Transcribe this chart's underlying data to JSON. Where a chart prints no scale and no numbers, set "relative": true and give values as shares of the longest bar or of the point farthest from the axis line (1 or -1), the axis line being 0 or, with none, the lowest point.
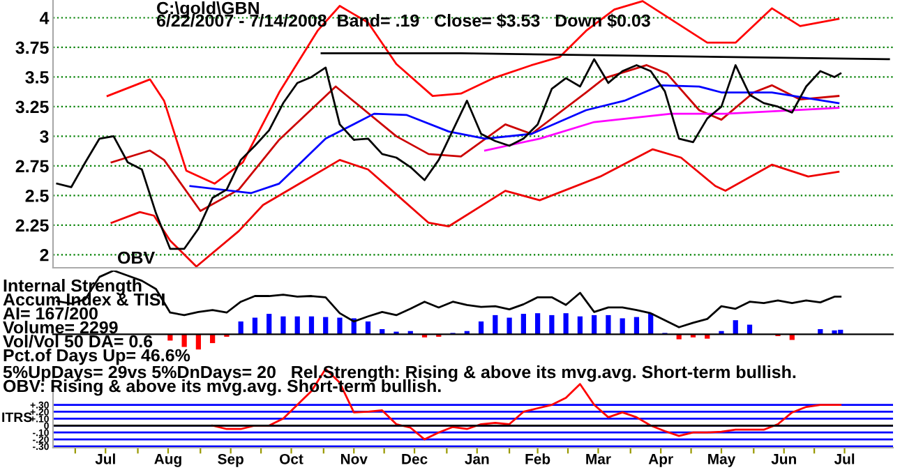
{
  "chart_data": [
    {
      "type": "line",
      "title": "C:\\gold\\GBN",
      "subtitle": "6/22/2007 - 7/14/2008  Band= .19   Close= $3.53   Down $0.03",
      "x": [
        "2007-06-22",
        "2007-06-29",
        "2007-07-06",
        "2007-07-13",
        "2007-07-20",
        "2007-07-27",
        "2007-08-03",
        "2007-08-10",
        "2007-08-17",
        "2007-08-24",
        "2007-08-31",
        "2007-09-07",
        "2007-09-14",
        "2007-09-21",
        "2007-09-28",
        "2007-10-05",
        "2007-10-12",
        "2007-10-19",
        "2007-10-26",
        "2007-11-02",
        "2007-11-09",
        "2007-11-16",
        "2007-11-23",
        "2007-11-30",
        "2007-12-07",
        "2007-12-14",
        "2007-12-21",
        "2007-12-28",
        "2008-01-04",
        "2008-01-11",
        "2008-01-18",
        "2008-01-25",
        "2008-02-01",
        "2008-02-08",
        "2008-02-15",
        "2008-02-22",
        "2008-02-29",
        "2008-03-07",
        "2008-03-14",
        "2008-03-21",
        "2008-03-28",
        "2008-04-04",
        "2008-04-11",
        "2008-04-18",
        "2008-04-25",
        "2008-05-02",
        "2008-05-09",
        "2008-05-16",
        "2008-05-23",
        "2008-05-30",
        "2008-06-06",
        "2008-06-13",
        "2008-06-20",
        "2008-06-27",
        "2008-07-04",
        "2008-07-11",
        "2008-07-14"
      ],
      "series": [
        {
          "color": "#ff0000",
          "x": [
            "2007-07-17",
            "2007-08-07",
            "2007-08-14",
            "2007-08-25",
            "2007-09-08",
            "2007-09-22",
            "2007-10-10",
            "2007-10-29",
            "2007-11-09",
            "2007-11-23",
            "2007-12-07",
            "2007-12-25",
            "2008-01-08",
            "2008-01-24",
            "2008-02-12",
            "2008-02-26",
            "2008-03-10",
            "2008-03-24",
            "2008-04-07",
            "2008-05-09",
            "2008-05-23",
            "2008-06-10",
            "2008-06-24",
            "2008-07-13"
          ],
          "values": [
            3.34,
            3.48,
            3.3,
            2.71,
            2.6,
            2.78,
            3.37,
            3.89,
            4.1,
            3.96,
            3.61,
            3.34,
            3.36,
            3.49,
            3.6,
            3.67,
            3.89,
            4.07,
            4.14,
            3.79,
            3.79,
            4.08,
            3.93,
            3.99
          ]
        },
        {
          "color": "#ee0000",
          "x": [
            "2007-07-19",
            "2007-08-02",
            "2007-08-09",
            "2007-08-17",
            "2007-08-30",
            "2007-09-20",
            "2007-10-02",
            "2007-10-22",
            "2007-11-09",
            "2007-11-23",
            "2007-12-07",
            "2007-12-23",
            "2008-01-02",
            "2008-01-30",
            "2008-02-16",
            "2008-03-17",
            "2008-04-12",
            "2008-04-26",
            "2008-05-13",
            "2008-05-18",
            "2008-06-10",
            "2008-06-28",
            "2008-07-13"
          ],
          "values": [
            2.27,
            2.36,
            2.33,
            2.12,
            1.9,
            2.2,
            2.42,
            2.62,
            2.8,
            2.72,
            2.51,
            2.27,
            2.24,
            2.54,
            2.46,
            2.66,
            2.89,
            2.82,
            2.58,
            2.54,
            2.76,
            2.66,
            2.7
          ]
        },
        {
          "color": "#cc0000",
          "x": [
            "2007-07-19",
            "2007-08-07",
            "2007-08-14",
            "2007-09-01",
            "2007-09-20",
            "2007-10-10",
            "2007-11-07",
            "2007-12-07",
            "2007-12-23",
            "2008-01-08",
            "2008-01-30",
            "2008-02-12",
            "2008-03-10",
            "2008-03-19",
            "2008-04-09",
            "2008-04-19",
            "2008-05-05",
            "2008-05-16",
            "2008-06-01",
            "2008-06-10",
            "2008-06-24",
            "2008-07-13"
          ],
          "values": [
            2.78,
            2.88,
            2.8,
            2.37,
            2.55,
            2.97,
            3.42,
            3.0,
            2.85,
            2.83,
            3.1,
            3.02,
            3.37,
            3.49,
            3.6,
            3.53,
            3.22,
            3.14,
            3.37,
            3.43,
            3.31,
            3.34
          ]
        },
        {
          "color": "#0000ff",
          "x": [
            "2007-08-27",
            "2007-09-26",
            "2007-10-10",
            "2007-11-02",
            "2007-11-26",
            "2007-12-12",
            "2008-01-02",
            "2008-01-20",
            "2008-02-12",
            "2008-03-10",
            "2008-03-29",
            "2008-04-16",
            "2008-05-05",
            "2008-05-16",
            "2008-06-10",
            "2008-07-13"
          ],
          "values": [
            2.58,
            2.52,
            2.6,
            2.98,
            3.19,
            3.18,
            3.04,
            2.98,
            3.02,
            3.22,
            3.3,
            3.43,
            3.42,
            3.37,
            3.37,
            3.28
          ]
        },
        {
          "color": "#ff00ff",
          "x": [
            "2008-01-20",
            "2008-02-16",
            "2008-03-14",
            "2008-04-21",
            "2008-05-18",
            "2008-07-13"
          ],
          "values": [
            2.88,
            2.98,
            3.12,
            3.19,
            3.19,
            3.24
          ]
        },
        {
          "color": "#000000",
          "x": [
            "2007-10-31",
            "2008-01-08",
            "2008-08-07"
          ],
          "values": [
            3.7,
            3.7,
            3.65
          ]
        },
        {
          "color": "#000000",
          "values": [
            2.6,
            2.57,
            2.78,
            2.98,
            3.0,
            2.78,
            2.72,
            2.35,
            2.05,
            2.05,
            2.22,
            2.48,
            2.55,
            2.8,
            2.92,
            3.05,
            3.28,
            3.45,
            3.5,
            3.58,
            3.1,
            2.97,
            2.98,
            2.85,
            2.82,
            2.74,
            2.63,
            2.8,
            3.05,
            3.3,
            3.02,
            2.96,
            2.92,
            2.98,
            3.1,
            3.4,
            3.49,
            3.42,
            3.65,
            3.45,
            3.55,
            3.6,
            3.55,
            3.38,
            2.98,
            2.95,
            3.15,
            3.25,
            3.6,
            3.35,
            3.28,
            3.25,
            3.2,
            3.42,
            3.55,
            3.5,
            3.53
          ]
        }
      ],
      "xlim": [
        "2007-06-20",
        "2008-08-09"
      ],
      "ylim": [
        1.89,
        4.15
      ],
      "yticks": [
        2,
        2.25,
        2.5,
        2.75,
        3,
        3.25,
        3.5,
        3.75,
        4
      ],
      "grid": "y",
      "tick_labels": "y",
      "line_style": "solid"
    },
    {
      "type": "bar",
      "relative": true,
      "tick_labels": false,
      "annotations": [
        "Internal Strength",
        "Accum Index & TISI",
        "AI= 167/200",
        "Volume= 2299",
        "Vol/Vol 50 DA= 0.6",
        "Pct.of Days Up= 46.6%",
        "5%UpDays= 29vs 5%DnDays= 20   Rel.Strength: Rising & above its mvg.avg. Short-term bullish.",
        "OBV: Rising & above its mvg.avg. Short-term bullish."
      ],
      "x": [
        "2007-06-22",
        "2007-06-29",
        "2007-07-06",
        "2007-07-13",
        "2007-07-20",
        "2007-07-27",
        "2007-08-03",
        "2007-08-10",
        "2007-08-17",
        "2007-08-24",
        "2007-08-31",
        "2007-09-07",
        "2007-09-14",
        "2007-09-21",
        "2007-09-28",
        "2007-10-05",
        "2007-10-12",
        "2007-10-19",
        "2007-10-26",
        "2007-11-02",
        "2007-11-09",
        "2007-11-16",
        "2007-11-23",
        "2007-11-30",
        "2007-12-07",
        "2007-12-14",
        "2007-12-21",
        "2007-12-28",
        "2008-01-04",
        "2008-01-11",
        "2008-01-18",
        "2008-01-25",
        "2008-02-01",
        "2008-02-08",
        "2008-02-15",
        "2008-02-22",
        "2008-02-29",
        "2008-03-07",
        "2008-03-14",
        "2008-03-21",
        "2008-03-28",
        "2008-04-04",
        "2008-04-11",
        "2008-04-18",
        "2008-04-25",
        "2008-05-02",
        "2008-05-09",
        "2008-05-16",
        "2008-05-23",
        "2008-05-30",
        "2008-06-06",
        "2008-06-13",
        "2008-06-20",
        "2008-06-27",
        "2008-07-04",
        "2008-07-11",
        "2008-07-14"
      ],
      "series": [
        {
          "color": "#0000ff",
          "values": [
            null,
            null,
            null,
            null,
            null,
            null,
            null,
            null,
            null,
            null,
            null,
            null,
            null,
            0.2,
            0.26,
            0.32,
            0.28,
            0.28,
            0.28,
            0.27,
            0.26,
            0.25,
            0.2,
            0.08,
            0.04,
            0.05,
            null,
            null,
            0.02,
            0.05,
            0.2,
            0.3,
            0.26,
            0.32,
            0.33,
            0.3,
            0.33,
            0.28,
            0.3,
            0.3,
            0.25,
            0.27,
            0.33,
            0.02,
            null,
            null,
            null,
            0.05,
            0.22,
            0.15,
            null,
            null,
            null,
            null,
            0.08,
            0.06,
            0.07
          ]
        },
        {
          "color": "#ff0000",
          "values": [
            null,
            null,
            null,
            null,
            null,
            null,
            null,
            null,
            -0.1,
            -0.2,
            -0.24,
            -0.14,
            -0.04,
            null,
            null,
            null,
            null,
            null,
            null,
            null,
            null,
            null,
            null,
            null,
            null,
            null,
            -0.05,
            -0.04,
            null,
            null,
            null,
            null,
            null,
            null,
            null,
            null,
            null,
            null,
            null,
            null,
            null,
            null,
            null,
            null,
            -0.08,
            -0.05,
            -0.07,
            null,
            null,
            null,
            null,
            -0.03,
            -0.09,
            null,
            null,
            null,
            null
          ]
        },
        {
          "type": "line",
          "name": "OBV",
          "color": "#000000",
          "values": [
            0.52,
            0.48,
            0.55,
            0.9,
            1.0,
            0.92,
            0.84,
            0.71,
            0.34,
            0.3,
            0.35,
            0.38,
            0.34,
            0.51,
            0.6,
            0.6,
            0.62,
            0.59,
            0.6,
            0.58,
            0.33,
            0.2,
            0.28,
            0.35,
            0.3,
            0.4,
            0.51,
            0.42,
            0.51,
            0.46,
            0.43,
            0.44,
            0.39,
            0.47,
            0.58,
            0.58,
            0.46,
            0.65,
            0.35,
            0.42,
            0.42,
            0.38,
            0.33,
            0.22,
            0.11,
            0.18,
            0.24,
            0.44,
            0.4,
            0.51,
            0.49,
            0.53,
            0.49,
            0.53,
            0.5,
            0.59,
            0.59
          ]
        }
      ],
      "xlim": [
        "2007-06-20",
        "2008-08-09"
      ]
    },
    {
      "type": "line",
      "ylabel": "ITRS",
      "x": [
        "2007-09-07",
        "2007-09-14",
        "2007-09-21",
        "2007-09-28",
        "2007-10-05",
        "2007-10-12",
        "2007-10-19",
        "2007-10-26",
        "2007-11-02",
        "2007-11-09",
        "2007-11-16",
        "2007-11-23",
        "2007-11-30",
        "2007-12-07",
        "2007-12-14",
        "2007-12-21",
        "2007-12-28",
        "2008-01-04",
        "2008-01-11",
        "2008-01-18",
        "2008-01-25",
        "2008-02-01",
        "2008-02-08",
        "2008-02-15",
        "2008-02-22",
        "2008-02-29",
        "2008-03-07",
        "2008-03-14",
        "2008-03-21",
        "2008-03-28",
        "2008-04-04",
        "2008-04-11",
        "2008-04-18",
        "2008-04-25",
        "2008-05-02",
        "2008-05-09",
        "2008-05-16",
        "2008-05-23",
        "2008-05-30",
        "2008-06-06",
        "2008-06-13",
        "2008-06-20",
        "2008-06-27",
        "2008-07-04",
        "2008-07-11",
        "2008-07-14"
      ],
      "series": [
        {
          "color": "#ff0000",
          "values": [
            0,
            -0.05,
            -0.05,
            0,
            0,
            0.1,
            0.3,
            0.5,
            0.82,
            0.62,
            0.19,
            0.2,
            0.22,
            0.02,
            -0.03,
            -0.2,
            -0.1,
            -0.02,
            -0.05,
            0.02,
            0.04,
            0.02,
            0.2,
            0.25,
            0.3,
            0.4,
            0.6,
            0.3,
            0.12,
            0.19,
            0.12,
            0,
            -0.08,
            -0.15,
            -0.1,
            -0.1,
            -0.09,
            -0.06,
            -0.06,
            -0.06,
            0.02,
            0.19,
            0.27,
            0.3,
            0.3,
            0.3
          ]
        }
      ],
      "xlim": [
        "2007-06-20",
        "2008-08-09"
      ],
      "ylim": [
        -0.32,
        0.85
      ],
      "xticks": [
        {
          "value": "2007-07-01",
          "label": null
        },
        {
          "value": "2007-07-16",
          "label": "Jul"
        },
        {
          "value": "2007-08-01",
          "label": null
        },
        {
          "value": "2007-08-16",
          "label": "Aug"
        },
        {
          "value": "2007-09-01",
          "label": null
        },
        {
          "value": "2007-09-16",
          "label": "Sep"
        },
        {
          "value": "2007-10-01",
          "label": null
        },
        {
          "value": "2007-10-16",
          "label": "Oct"
        },
        {
          "value": "2007-11-01",
          "label": null
        },
        {
          "value": "2007-11-16",
          "label": "Nov"
        },
        {
          "value": "2007-12-01",
          "label": null
        },
        {
          "value": "2007-12-16",
          "label": "Dec"
        },
        {
          "value": "2008-01-01",
          "label": null
        },
        {
          "value": "2008-01-16",
          "label": "Jan"
        },
        {
          "value": "2008-02-01",
          "label": null
        },
        {
          "value": "2008-02-15",
          "label": "Feb"
        },
        {
          "value": "2008-03-01",
          "label": null
        },
        {
          "value": "2008-03-16",
          "label": "Mar"
        },
        {
          "value": "2008-04-01",
          "label": null
        },
        {
          "value": "2008-04-16",
          "label": "Apr"
        },
        {
          "value": "2008-05-01",
          "label": null
        },
        {
          "value": "2008-05-16",
          "label": "May"
        },
        {
          "value": "2008-06-01",
          "label": null
        },
        {
          "value": "2008-06-16",
          "label": "Jun"
        },
        {
          "value": "2008-07-01",
          "label": null
        },
        {
          "value": "2008-07-16",
          "label": "Jul"
        }
      ],
      "yticks": [
        {
          "value": 0.3,
          "label": "+.30"
        },
        {
          "value": 0.2,
          "label": "+.20"
        },
        {
          "value": 0.1,
          "label": "+.10"
        },
        0,
        {
          "value": -0.1,
          "label": "-.10"
        },
        {
          "value": -0.2,
          "label": "-.20"
        },
        {
          "value": -0.3,
          "label": "-.30"
        }
      ],
      "grid": "y",
      "ref_lines": [
        {
          "axis": "y",
          "value": 0,
          "color": "#000000"
        }
      ]
    }
  ]
}
